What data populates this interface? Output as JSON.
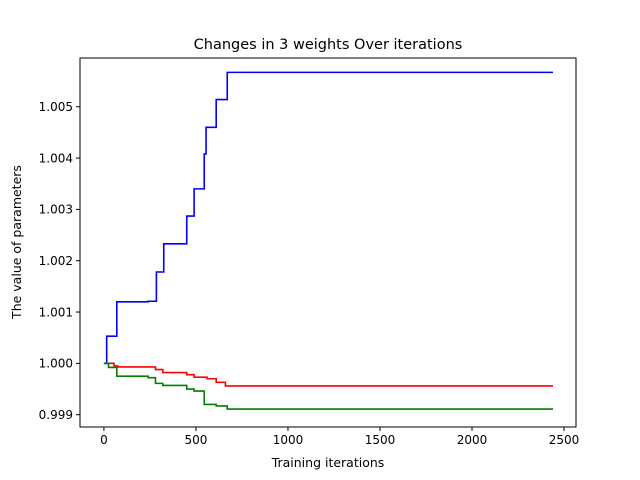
{
  "chart_data": {
    "type": "line",
    "title": "Changes in 3 weights Over iterations",
    "xlabel": "Training iterations",
    "ylabel": "The value of parameters",
    "xlim": [
      -130,
      2565
    ],
    "ylim": [
      0.99876,
      1.00595
    ],
    "xticks": [
      0,
      500,
      1000,
      1500,
      2000,
      2500
    ],
    "xtick_labels": [
      "0",
      "500",
      "1000",
      "1500",
      "2000",
      "2500"
    ],
    "yticks": [
      0.999,
      1.0,
      1.001,
      1.002,
      1.003,
      1.004,
      1.005
    ],
    "ytick_labels": [
      "0.999",
      "1.000",
      "1.001",
      "1.002",
      "1.003",
      "1.004",
      "1.005"
    ],
    "grid": false,
    "legend": "none",
    "series": [
      {
        "color": "#0000ff",
        "step": true,
        "points": [
          [
            0,
            1.0
          ],
          [
            15,
            1.0
          ],
          [
            15,
            1.00053
          ],
          [
            70,
            1.00053
          ],
          [
            70,
            1.0012
          ],
          [
            240,
            1.0012
          ],
          [
            240,
            1.00121
          ],
          [
            285,
            1.00121
          ],
          [
            285,
            1.00178
          ],
          [
            325,
            1.00178
          ],
          [
            325,
            1.00233
          ],
          [
            450,
            1.00233
          ],
          [
            450,
            1.00287
          ],
          [
            490,
            1.00287
          ],
          [
            490,
            1.0034
          ],
          [
            545,
            1.0034
          ],
          [
            545,
            1.00408
          ],
          [
            555,
            1.00408
          ],
          [
            555,
            1.0046
          ],
          [
            610,
            1.0046
          ],
          [
            610,
            1.00514
          ],
          [
            670,
            1.00514
          ],
          [
            670,
            1.00567
          ],
          [
            2440,
            1.00567
          ]
        ]
      },
      {
        "color": "#ff0000",
        "step": true,
        "points": [
          [
            0,
            1.0
          ],
          [
            55,
            1.0
          ],
          [
            55,
            0.99995
          ],
          [
            75,
            0.99995
          ],
          [
            75,
            0.99993
          ],
          [
            280,
            0.99993
          ],
          [
            280,
            0.99988
          ],
          [
            320,
            0.99988
          ],
          [
            320,
            0.99982
          ],
          [
            450,
            0.99982
          ],
          [
            450,
            0.99978
          ],
          [
            490,
            0.99978
          ],
          [
            490,
            0.99973
          ],
          [
            560,
            0.99973
          ],
          [
            560,
            0.9997
          ],
          [
            610,
            0.9997
          ],
          [
            610,
            0.99963
          ],
          [
            660,
            0.99963
          ],
          [
            660,
            0.99956
          ],
          [
            2440,
            0.99956
          ]
        ]
      },
      {
        "color": "#008000",
        "step": true,
        "points": [
          [
            0,
            1.0
          ],
          [
            25,
            1.0
          ],
          [
            25,
            0.99992
          ],
          [
            70,
            0.99992
          ],
          [
            70,
            0.99975
          ],
          [
            240,
            0.99975
          ],
          [
            240,
            0.99972
          ],
          [
            280,
            0.99972
          ],
          [
            280,
            0.99961
          ],
          [
            320,
            0.99961
          ],
          [
            320,
            0.99957
          ],
          [
            450,
            0.99957
          ],
          [
            450,
            0.9995
          ],
          [
            490,
            0.9995
          ],
          [
            490,
            0.99946
          ],
          [
            545,
            0.99946
          ],
          [
            545,
            0.9992
          ],
          [
            610,
            0.9992
          ],
          [
            610,
            0.99917
          ],
          [
            670,
            0.99917
          ],
          [
            670,
            0.99911
          ],
          [
            2440,
            0.99911
          ]
        ]
      }
    ]
  }
}
